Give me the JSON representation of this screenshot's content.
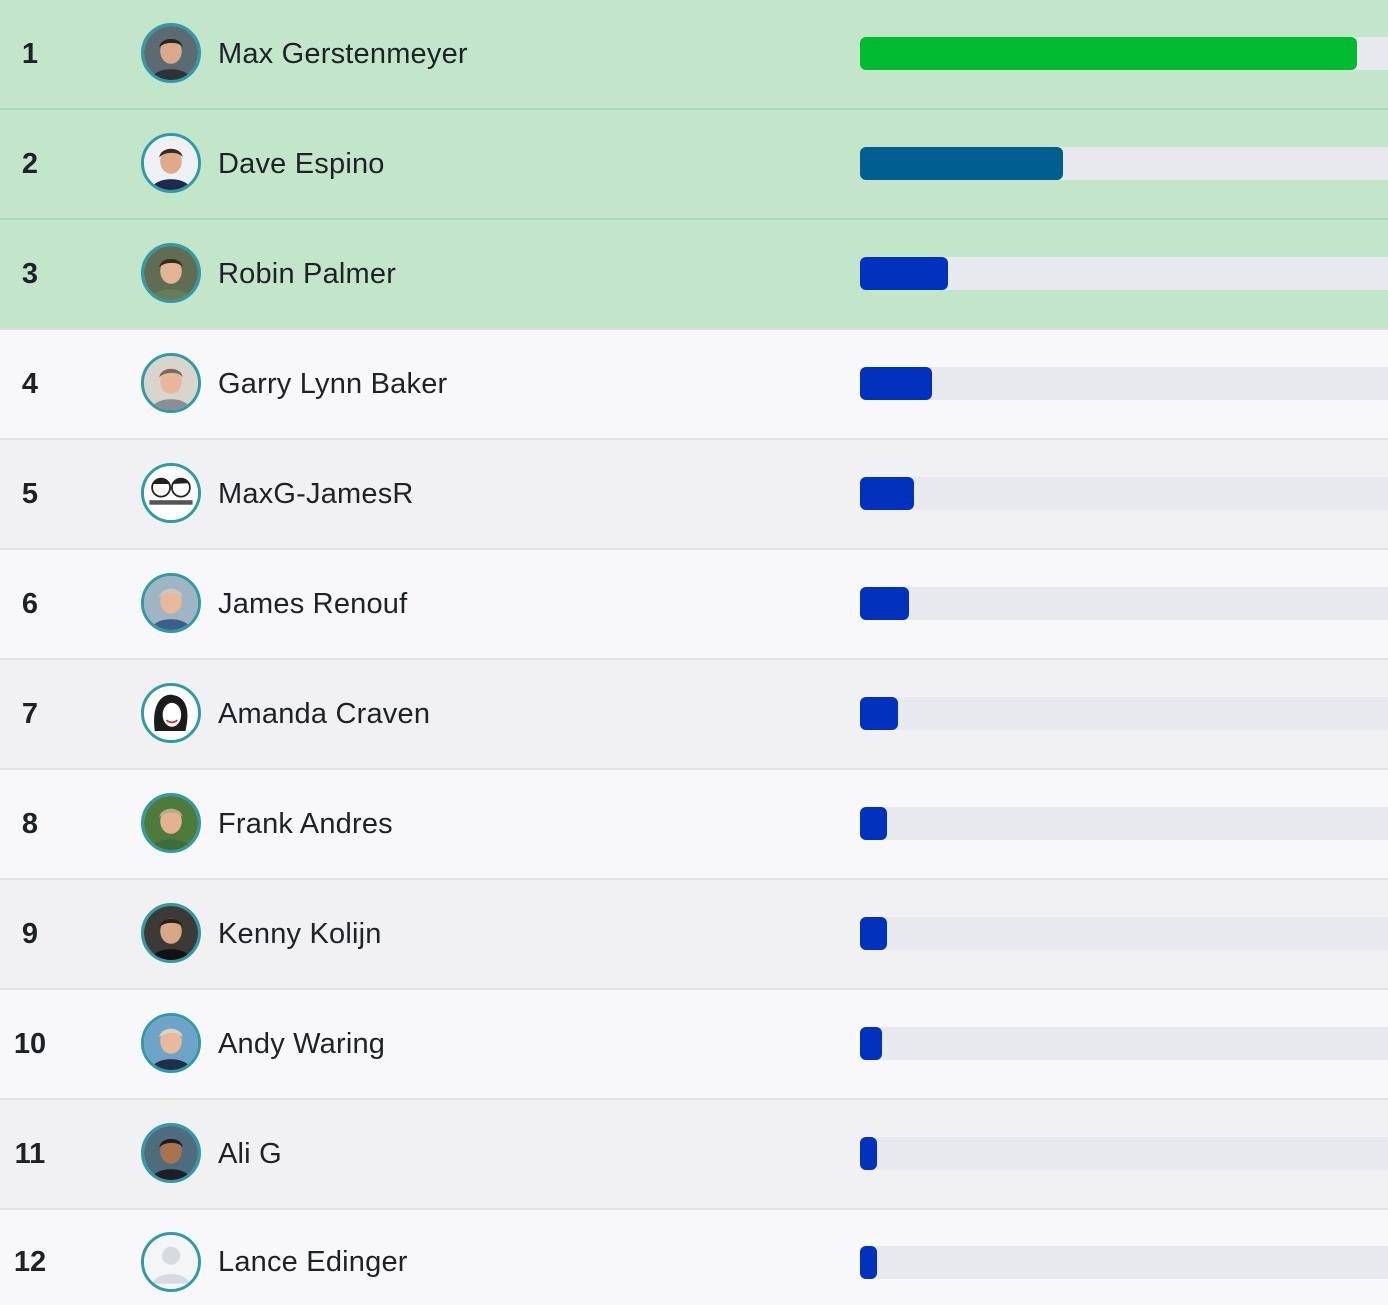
{
  "leaderboard": {
    "bar_max_score": 100,
    "rows": [
      {
        "rank": "1",
        "name": "Max Gerstenmeyer",
        "score_pct": 100,
        "bar_color": "#00bb30",
        "row_color": "#c3e6cb",
        "avatar_icon": "user-photo-icon",
        "skin": "#d9a98a",
        "hair": "#2b2420",
        "shirt": "#2d3138",
        "bg": "#5a6b74"
      },
      {
        "rank": "2",
        "name": "Dave Espino",
        "score_pct": 40.8,
        "bar_color": "#015f8f",
        "row_color": "#c3e6cb",
        "avatar_icon": "user-photo-icon",
        "skin": "#e0a987",
        "hair": "#3a2a22",
        "shirt": "#1d2a4a",
        "bg": "#eef1f4"
      },
      {
        "rank": "3",
        "name": "Robin Palmer",
        "score_pct": 17.6,
        "bar_color": "#0231bd",
        "row_color": "#c3e6cb",
        "avatar_icon": "user-photo-icon",
        "skin": "#e3b396",
        "hair": "#3b2718",
        "shirt": "#6a7b5a",
        "bg": "#5f6e52"
      },
      {
        "rank": "4",
        "name": "Garry Lynn Baker",
        "score_pct": 14.4,
        "bar_color": "#0231bd",
        "row_color": "#f8f8fa",
        "avatar_icon": "user-photo-icon",
        "skin": "#e8b79b",
        "hair": "#7a6a5c",
        "shirt": "#8a8f96",
        "bg": "#d9d4cc"
      },
      {
        "rank": "5",
        "name": "MaxG-JamesR",
        "score_pct": 10.9,
        "bar_color": "#0231bd",
        "row_color": "#f1f1f3",
        "avatar_icon": "cartoon-duo-icon",
        "skin": "#ffffff",
        "hair": "#222222",
        "shirt": "#ffffff",
        "bg": "#ffffff"
      },
      {
        "rank": "6",
        "name": "James Renouf",
        "score_pct": 9.9,
        "bar_color": "#0231bd",
        "row_color": "#f8f8fa",
        "avatar_icon": "user-photo-icon",
        "skin": "#e7b89a",
        "hair": "#cfc6bd",
        "shirt": "#3c5f8a",
        "bg": "#9fb5c4"
      },
      {
        "rank": "7",
        "name": "Amanda Craven",
        "score_pct": 7.7,
        "bar_color": "#0231bd",
        "row_color": "#f1f1f3",
        "avatar_icon": "cartoon-woman-icon",
        "skin": "#ffffff",
        "hair": "#1b1b1b",
        "shirt": "#ffffff",
        "bg": "#ffffff"
      },
      {
        "rank": "8",
        "name": "Frank Andres",
        "score_pct": 5.5,
        "bar_color": "#0231bd",
        "row_color": "#f8f8fa",
        "avatar_icon": "user-photo-icon",
        "skin": "#e4b194",
        "hair": "#b9a98f",
        "shirt": "#3d6e3a",
        "bg": "#4e7a3c"
      },
      {
        "rank": "9",
        "name": "Kenny Kolijn",
        "score_pct": 5.5,
        "bar_color": "#0231bd",
        "row_color": "#f1f1f3",
        "avatar_icon": "user-photo-icon",
        "skin": "#d7a887",
        "hair": "#2c2118",
        "shirt": "#121212",
        "bg": "#3b3a36"
      },
      {
        "rank": "10",
        "name": "Andy Waring",
        "score_pct": 4.5,
        "bar_color": "#0231bd",
        "row_color": "#f8f8fa",
        "avatar_icon": "user-photo-icon",
        "skin": "#e9b99d",
        "hair": "#dcd2c8",
        "shirt": "#1f2f4a",
        "bg": "#6fa3c7"
      },
      {
        "rank": "11",
        "name": "Ali G",
        "score_pct": 3.5,
        "bar_color": "#0231bd",
        "row_color": "#f1f1f3",
        "avatar_icon": "user-photo-icon",
        "skin": "#a8734f",
        "hair": "#1c1c1c",
        "shirt": "#1e1e26",
        "bg": "#4f6c7e"
      },
      {
        "rank": "12",
        "name": "Lance Edinger",
        "score_pct": 3.5,
        "bar_color": "#0231bd",
        "row_color": "#f8f8fa",
        "avatar_icon": "default-avatar-icon",
        "skin": "#dfe3e8",
        "hair": "#dfe3e8",
        "shirt": "#dfe3e8",
        "bg": "#f4f5f7"
      }
    ]
  }
}
